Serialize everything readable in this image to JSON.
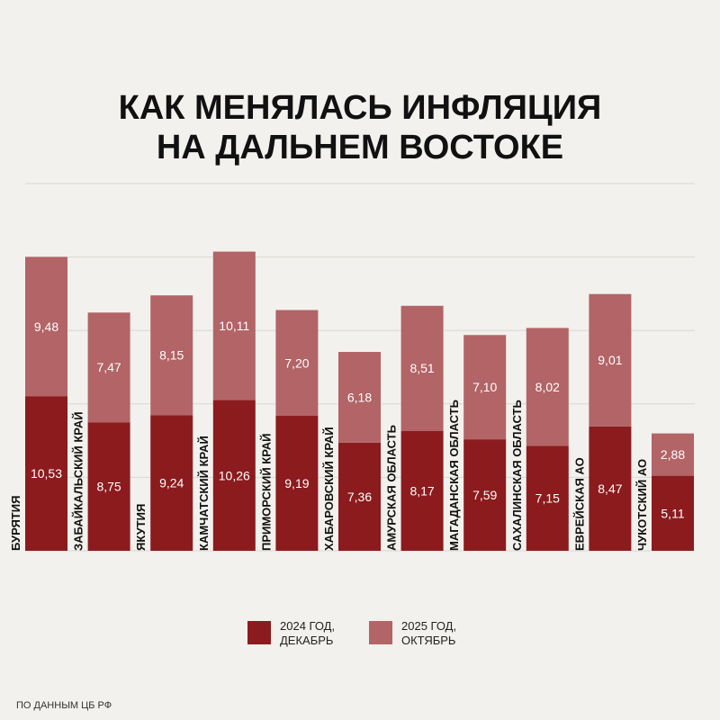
{
  "chart_data": {
    "type": "stacked_bar",
    "title": "КАК МЕНЯЛАСЬ ИНФЛЯЦИЯ НА ДАЛЬНЕМ ВОСТОКЕ",
    "categories": [
      "БУРЯТИЯ",
      "ЗАБАЙКАЛЬСКИЙ КРАЙ",
      "ЯКУТИЯ",
      "КАМЧАТСКИЙ КРАЙ",
      "ПРИМОРСКИЙ КРАЙ",
      "ХАБАРОВСКИЙ КРАЙ",
      "АМУРСКАЯ ОБЛАСТЬ",
      "МАГАДАНСКАЯ ОБЛАСТЬ",
      "САХАЛИНСКАЯ ОБЛАСТЬ",
      "ЕВРЕЙСКАЯ АО",
      "ЧУКОТСКИЙ АО"
    ],
    "series": [
      {
        "name": "2024 ГОД, ДЕКАБРЬ",
        "color": "#8c1b1e",
        "values": [
          10.53,
          8.75,
          9.24,
          10.26,
          9.19,
          7.36,
          8.17,
          7.59,
          7.15,
          8.47,
          5.11
        ],
        "value_labels": [
          "10,53",
          "8,75",
          "9,24",
          "10,26",
          "9,19",
          "7,36",
          "8,17",
          "7,59",
          "7,15",
          "8,47",
          "5,11"
        ]
      },
      {
        "name": "2025 ГОД, ОКТЯБРЬ",
        "color": "#b26466",
        "values": [
          9.48,
          7.47,
          8.15,
          10.11,
          7.2,
          6.18,
          8.51,
          7.1,
          8.02,
          9.01,
          2.88
        ],
        "value_labels": [
          "9,48",
          "7,47",
          "8,15",
          "10,11",
          "7,20",
          "6,18",
          "8,51",
          "7,10",
          "8,02",
          "9,01",
          "2,88"
        ]
      }
    ],
    "ylim": [
      0,
      25
    ],
    "yticks": [
      0,
      5,
      10,
      15,
      20,
      25
    ],
    "grid": true,
    "source": "ПО ДАННЫМ ЦБ РФ"
  }
}
